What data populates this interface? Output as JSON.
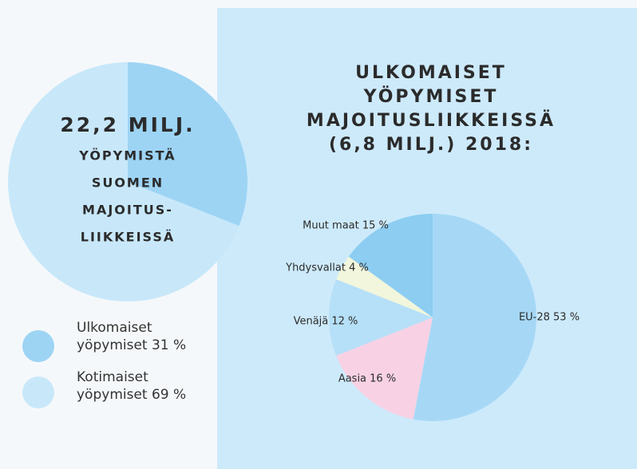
{
  "chart_data": [
    {
      "type": "pie",
      "title": "22,2 MILJ.",
      "subtitle": [
        "YÖPYMISTÄ",
        "SUOMEN",
        "MAJOITUS-",
        "LIIKKEISSÄ"
      ],
      "categories": [
        "Ulkomaiset yöpymiset 31 %",
        "Kotimaiset yöpymiset 69 %"
      ],
      "values": [
        31,
        69
      ],
      "colors": [
        "#9dd4f4",
        "#c8e8fa"
      ],
      "legend": "bottom-left"
    },
    {
      "type": "pie",
      "title": [
        "ULKOMAISET",
        "YÖPYMISET",
        "MAJOITUSLIIKKEISSÄ",
        "(6,8 MILJ.) 2018:"
      ],
      "categories": [
        "EU-28 53 %",
        "Aasia 16 %",
        "Venäjä 12 %",
        "Yhdysvallat 4 %",
        "Muut maat 15 %"
      ],
      "values": [
        53,
        16,
        12,
        4,
        15
      ],
      "colors": [
        "#a6d8f6",
        "#f8d2e4",
        "#b6e0f8",
        "#f1f6dc",
        "#8ccdf1"
      ]
    }
  ]
}
